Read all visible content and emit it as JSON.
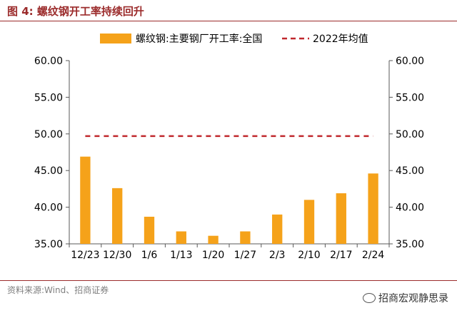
{
  "header": {
    "title": "图 4:  螺纹钢开工率持续回升"
  },
  "chart_data": {
    "type": "bar",
    "categories": [
      "12/23",
      "12/30",
      "1/6",
      "1/13",
      "1/20",
      "1/27",
      "2/3",
      "2/10",
      "2/17",
      "2/24"
    ],
    "series": [
      {
        "name": "螺纹钢:主要钢厂开工率:全国",
        "type": "bar",
        "color": "#f5a21a",
        "values": [
          46.9,
          42.6,
          38.7,
          36.7,
          36.1,
          36.7,
          39.0,
          41.0,
          41.9,
          44.6
        ]
      },
      {
        "name": "2022年均值",
        "type": "line",
        "style": "dashed",
        "color": "#c0282d",
        "values": [
          49.7,
          49.7,
          49.7,
          49.7,
          49.7,
          49.7,
          49.7,
          49.7,
          49.7,
          49.7
        ]
      }
    ],
    "ylim": [
      35,
      60
    ],
    "yticks": [
      "35.00",
      "40.00",
      "45.00",
      "50.00",
      "55.00",
      "60.00"
    ],
    "secondary_yticks": [
      "35.00",
      "40.00",
      "45.00",
      "50.00",
      "55.00",
      "60.00"
    ],
    "legend_position": "top",
    "grid": false
  },
  "footer": {
    "source": "资料来源:Wind、招商证券",
    "watermark": "招商宏观静思录",
    "watermark_icon": "wechat-icon"
  }
}
